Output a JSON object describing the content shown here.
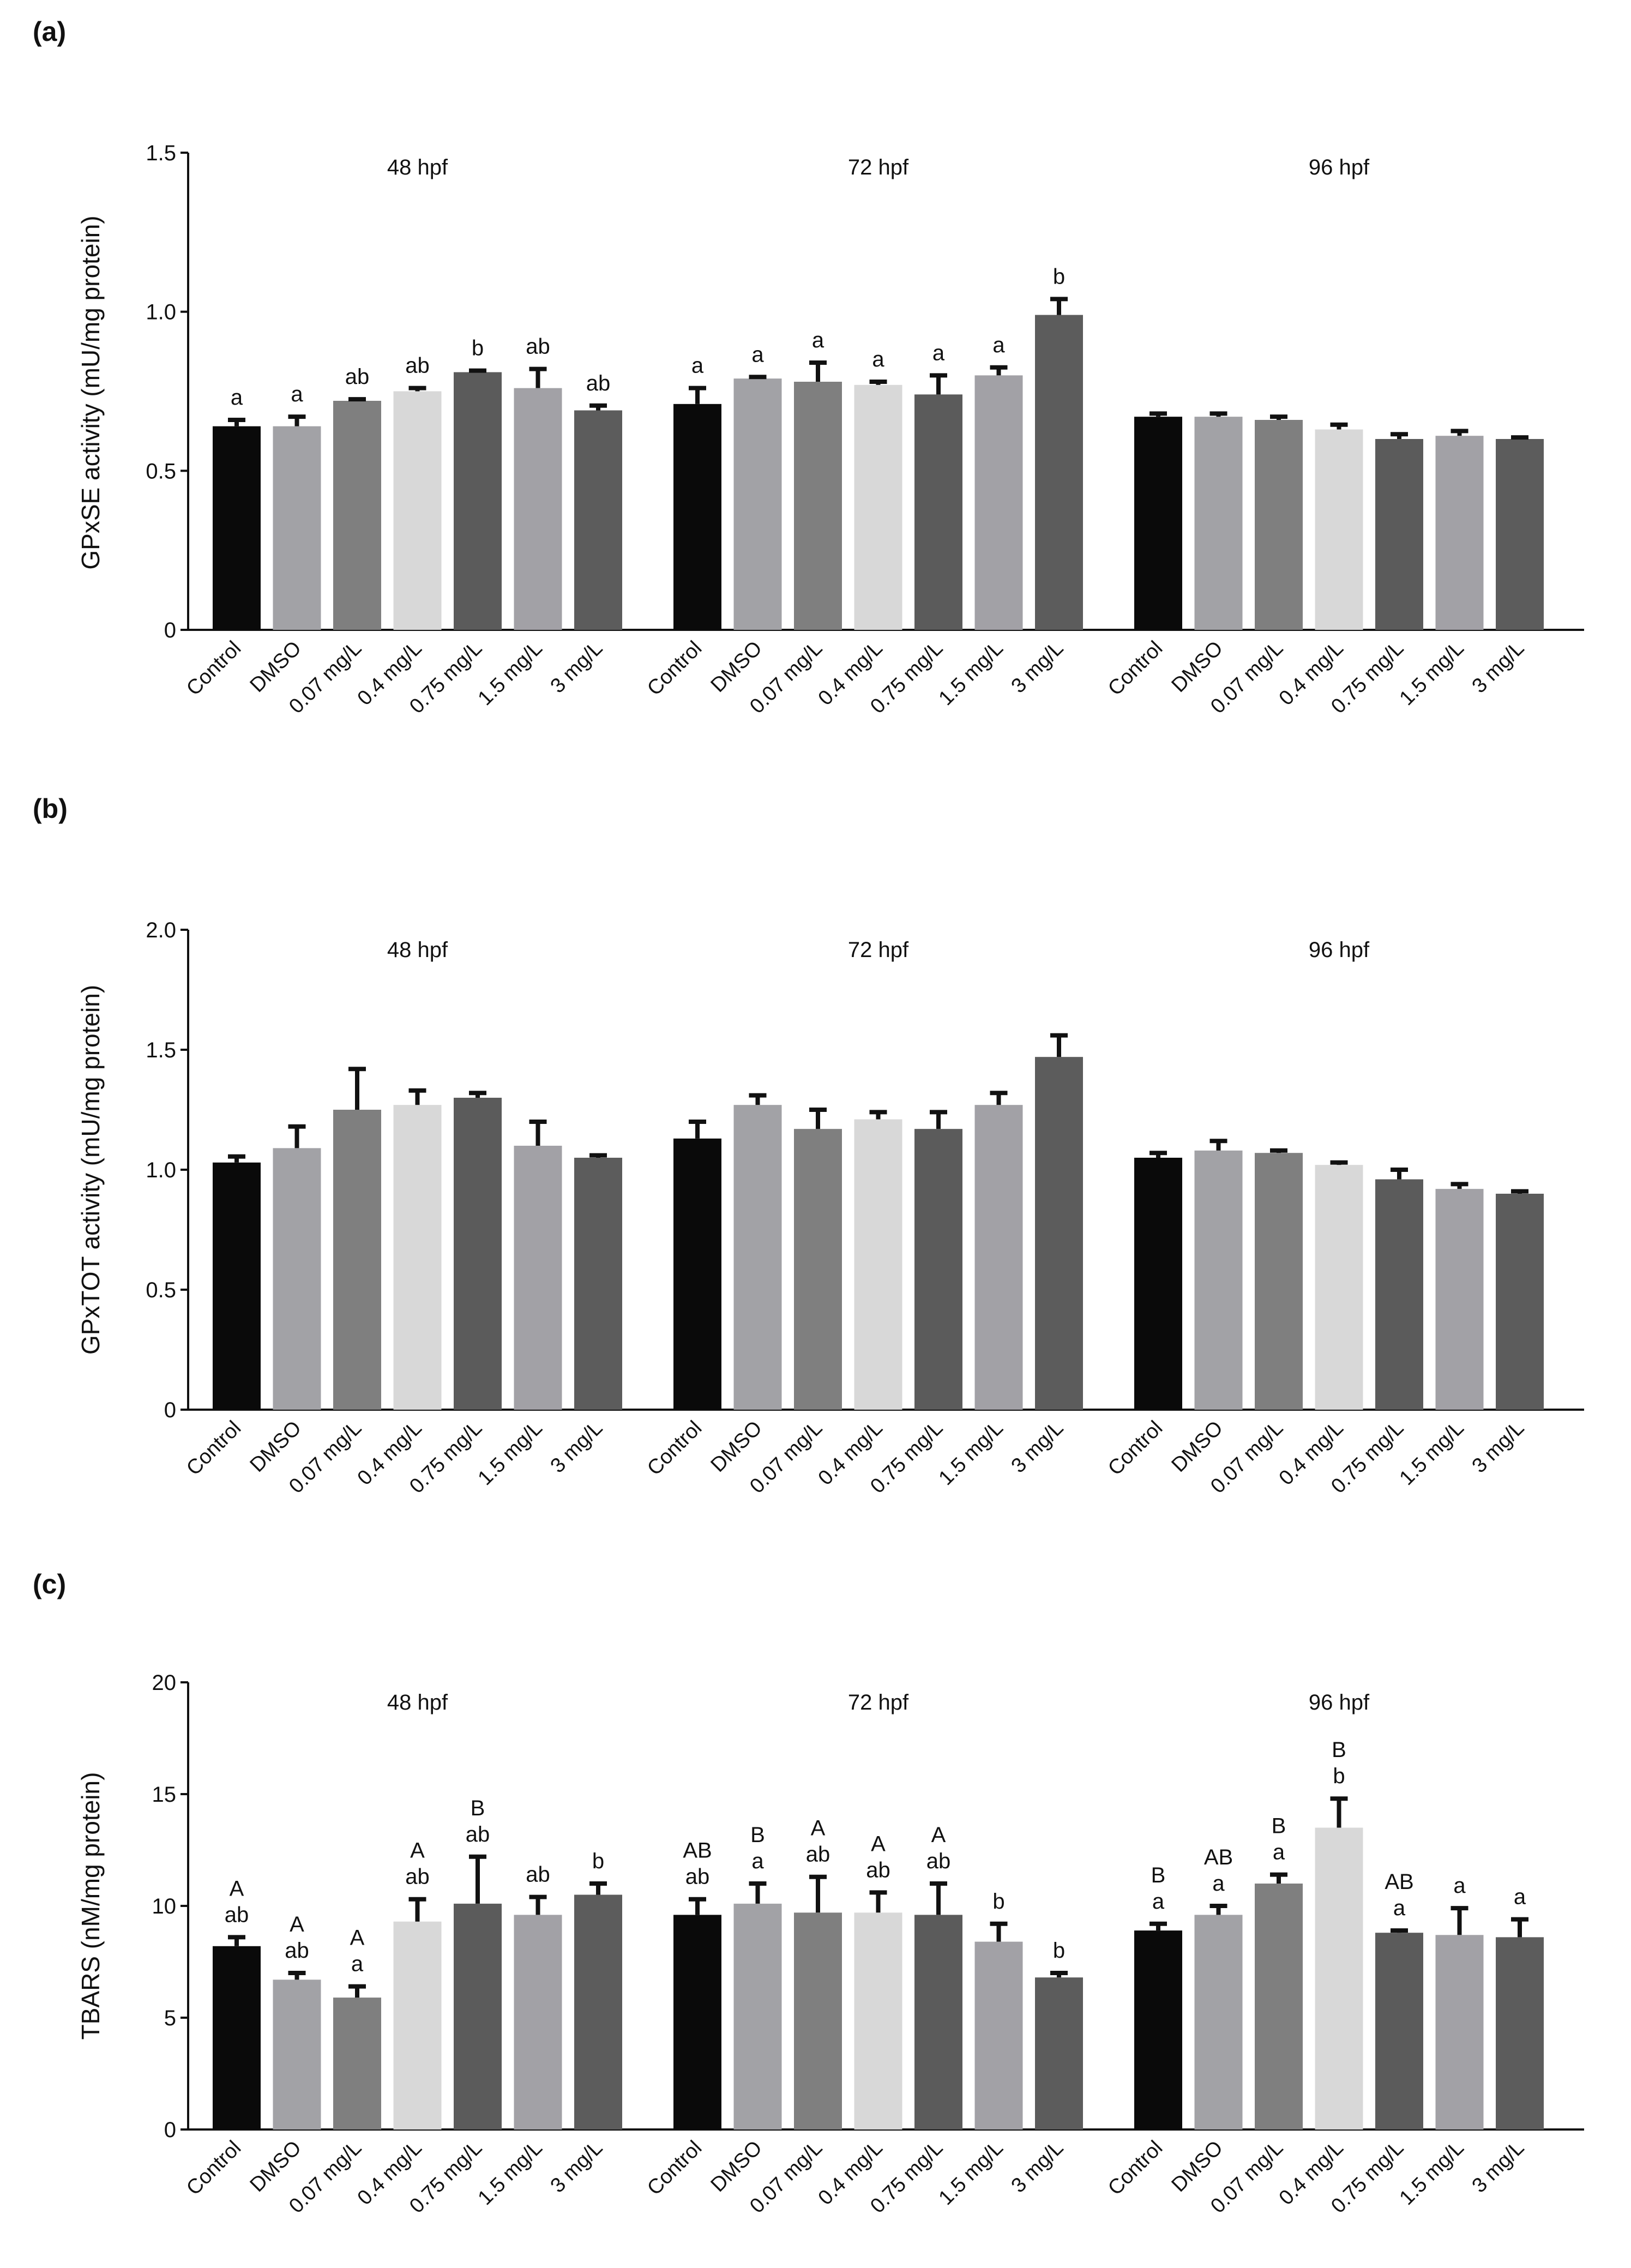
{
  "chart_data": [
    {
      "panel_label": "(a)",
      "type": "bar",
      "ylabel": "GPxSE activity (mU/mg protein)",
      "ylim": [
        0,
        1.5
      ],
      "yticks": [
        "0",
        "0.5",
        "1.0",
        "1.5"
      ],
      "ytick_values": [
        0,
        0.5,
        1.0,
        1.5
      ],
      "categories": [
        "Control",
        "DMSO",
        "0.07 mg/L",
        "0.4 mg/L",
        "0.75 mg/L",
        "1.5 mg/L",
        "3 mg/L"
      ],
      "groups": [
        {
          "name": "48 hpf",
          "values": [
            0.64,
            0.64,
            0.72,
            0.75,
            0.81,
            0.76,
            0.69
          ],
          "errors": [
            0.02,
            0.03,
            0.005,
            0.01,
            0.005,
            0.06,
            0.015
          ],
          "labels": [
            [
              "a"
            ],
            [
              "a"
            ],
            [
              "ab"
            ],
            [
              "ab"
            ],
            [
              "b"
            ],
            [
              "ab"
            ],
            [
              "ab"
            ]
          ]
        },
        {
          "name": "72 hpf",
          "values": [
            0.71,
            0.79,
            0.78,
            0.77,
            0.74,
            0.8,
            0.99
          ],
          "errors": [
            0.05,
            0.005,
            0.06,
            0.01,
            0.06,
            0.025,
            0.05
          ],
          "labels": [
            [
              "a"
            ],
            [
              "a"
            ],
            [
              "a"
            ],
            [
              "a"
            ],
            [
              "a"
            ],
            [
              "a"
            ],
            [
              "b"
            ]
          ]
        },
        {
          "name": "96 hpf",
          "values": [
            0.67,
            0.67,
            0.66,
            0.63,
            0.6,
            0.61,
            0.6
          ],
          "errors": [
            0.01,
            0.01,
            0.01,
            0.015,
            0.015,
            0.015,
            0.005
          ],
          "labels": [
            [],
            [],
            [],
            [],
            [],
            [],
            []
          ]
        }
      ]
    },
    {
      "panel_label": "(b)",
      "type": "bar",
      "ylabel": "GPxTOT activity (mU/mg protein)",
      "ylim": [
        0,
        2.0
      ],
      "yticks": [
        "0",
        "0.5",
        "1.0",
        "1.5",
        "2.0"
      ],
      "ytick_values": [
        0,
        0.5,
        1.0,
        1.5,
        2.0
      ],
      "categories": [
        "Control",
        "DMSO",
        "0.07 mg/L",
        "0.4 mg/L",
        "0.75 mg/L",
        "1.5 mg/L",
        "3 mg/L"
      ],
      "groups": [
        {
          "name": "48 hpf",
          "values": [
            1.03,
            1.09,
            1.25,
            1.27,
            1.3,
            1.1,
            1.05
          ],
          "errors": [
            0.025,
            0.09,
            0.17,
            0.06,
            0.02,
            0.1,
            0.01
          ],
          "labels": [
            [],
            [],
            [],
            [],
            [],
            [],
            []
          ]
        },
        {
          "name": "72 hpf",
          "values": [
            1.13,
            1.27,
            1.17,
            1.21,
            1.17,
            1.27,
            1.47
          ],
          "errors": [
            0.07,
            0.04,
            0.08,
            0.03,
            0.07,
            0.05,
            0.09
          ],
          "labels": [
            [],
            [],
            [],
            [],
            [],
            [],
            []
          ]
        },
        {
          "name": "96 hpf",
          "values": [
            1.05,
            1.08,
            1.07,
            1.02,
            0.96,
            0.92,
            0.9
          ],
          "errors": [
            0.02,
            0.04,
            0.01,
            0.01,
            0.04,
            0.02,
            0.01
          ],
          "labels": [
            [],
            [],
            [],
            [],
            [],
            [],
            []
          ]
        }
      ]
    },
    {
      "panel_label": "(c)",
      "type": "bar",
      "ylabel": "TBARS (nM/mg protein)",
      "ylim": [
        0,
        20
      ],
      "yticks": [
        "0",
        "5",
        "10",
        "15",
        "20"
      ],
      "ytick_values": [
        0,
        5,
        10,
        15,
        20
      ],
      "categories": [
        "Control",
        "DMSO",
        "0.07 mg/L",
        "0.4 mg/L",
        "0.75 mg/L",
        "1.5 mg/L",
        "3 mg/L"
      ],
      "groups": [
        {
          "name": "48 hpf",
          "values": [
            8.2,
            6.7,
            5.9,
            9.3,
            10.1,
            9.6,
            10.5
          ],
          "errors": [
            0.4,
            0.3,
            0.5,
            1.0,
            2.1,
            0.8,
            0.5
          ],
          "labels": [
            [
              "A",
              "ab"
            ],
            [
              "A",
              "ab"
            ],
            [
              "A",
              "a"
            ],
            [
              "A",
              "ab"
            ],
            [
              "B",
              "ab"
            ],
            [
              "ab"
            ],
            [
              "b"
            ]
          ]
        },
        {
          "name": "72 hpf",
          "values": [
            9.6,
            10.1,
            9.7,
            9.7,
            9.6,
            8.4,
            6.8
          ],
          "errors": [
            0.7,
            0.9,
            1.6,
            0.9,
            1.4,
            0.8,
            0.2
          ],
          "labels": [
            [
              "AB",
              "ab"
            ],
            [
              "B",
              "a"
            ],
            [
              "A",
              "ab"
            ],
            [
              "A",
              "ab"
            ],
            [
              "A",
              "ab"
            ],
            [
              "b"
            ],
            [
              "b"
            ]
          ]
        },
        {
          "name": "96 hpf",
          "values": [
            8.9,
            9.6,
            11.0,
            13.5,
            8.8,
            8.7,
            8.6
          ],
          "errors": [
            0.3,
            0.4,
            0.4,
            1.3,
            0.1,
            1.2,
            0.8
          ],
          "labels": [
            [
              "B",
              "a"
            ],
            [
              "AB",
              "a"
            ],
            [
              "B",
              "a"
            ],
            [
              "B",
              "b"
            ],
            [
              "AB",
              "a"
            ],
            [
              "a"
            ],
            [
              "a"
            ]
          ]
        }
      ]
    }
  ],
  "bar_colors": [
    "#0a0a0a",
    "#a2a2a6",
    "#7f7f7f",
    "#d8d8d8",
    "#5b5b5b",
    "#a2a1a6",
    "#5c5c5c"
  ]
}
